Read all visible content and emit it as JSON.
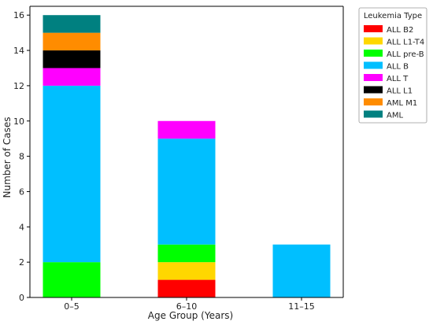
{
  "chart_data": {
    "type": "bar",
    "stacked": true,
    "title": "",
    "xlabel": "Age Group (Years)",
    "ylabel": "Number of Cases",
    "categories": [
      "0–5",
      "6–10",
      "11–15"
    ],
    "ylim": [
      0,
      16.5
    ],
    "yticks": [
      0,
      2,
      4,
      6,
      8,
      10,
      12,
      14,
      16
    ],
    "grid": false,
    "legend": {
      "title": "Leukemia Type",
      "position": "top-right"
    },
    "series": [
      {
        "name": "ALL B2",
        "color": "#ff0000",
        "values": [
          0,
          1,
          0
        ]
      },
      {
        "name": "ALL L1-T4",
        "color": "#ffd700",
        "values": [
          0,
          1,
          0
        ]
      },
      {
        "name": "ALL pre-B",
        "color": "#00ff00",
        "values": [
          2,
          1,
          0
        ]
      },
      {
        "name": "ALL B",
        "color": "#00bfff",
        "values": [
          10,
          6,
          3
        ]
      },
      {
        "name": "ALL T",
        "color": "#ff00ff",
        "values": [
          1,
          1,
          0
        ]
      },
      {
        "name": "ALL L1",
        "color": "#000000",
        "values": [
          1,
          0,
          0
        ]
      },
      {
        "name": "AML M1",
        "color": "#ff8c00",
        "values": [
          1,
          0,
          0
        ]
      },
      {
        "name": "AML",
        "color": "#008080",
        "values": [
          1,
          0,
          0
        ]
      }
    ]
  }
}
